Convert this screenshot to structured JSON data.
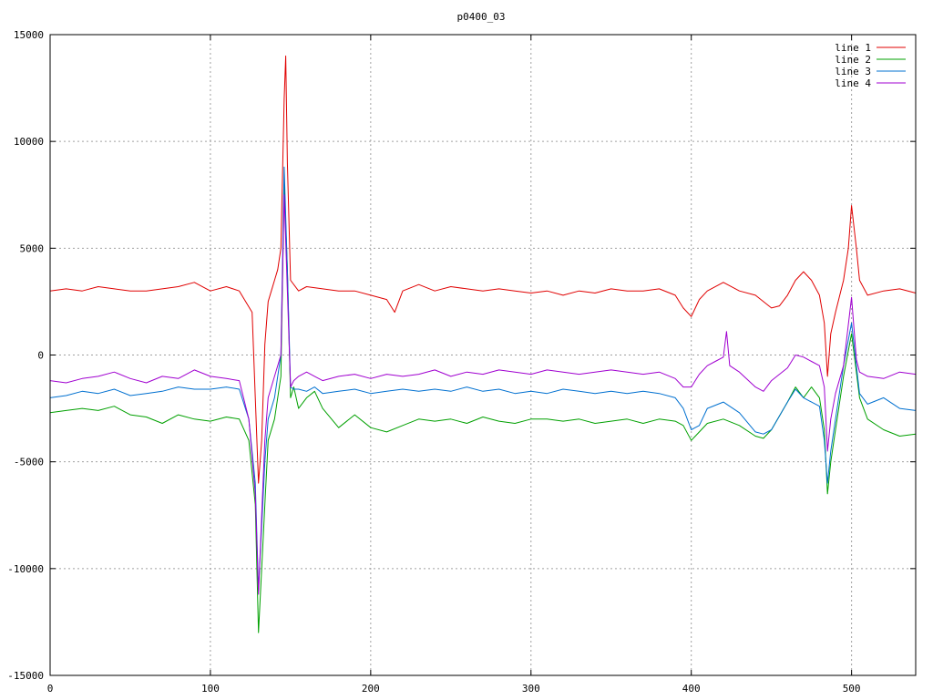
{
  "chart_data": {
    "type": "line",
    "title": "p0400_03",
    "xlabel": "",
    "ylabel": "",
    "xlim": [
      0,
      540
    ],
    "ylim": [
      -15000,
      15000
    ],
    "x_ticks": [
      0,
      100,
      200,
      300,
      400,
      500
    ],
    "x_tick_labels": [
      "0",
      "100",
      "200",
      "300",
      "400",
      "500"
    ],
    "y_ticks": [
      -15000,
      -10000,
      -5000,
      0,
      5000,
      10000,
      15000
    ],
    "y_tick_labels": [
      "-15000",
      "-10000",
      "-5000",
      "0",
      "5000",
      "10000",
      "15000"
    ],
    "grid": true,
    "legend_position": "top-right",
    "series": [
      {
        "name": "line 1",
        "color": "#e00000",
        "x": [
          0,
          10,
          20,
          30,
          40,
          50,
          60,
          70,
          80,
          90,
          100,
          110,
          118,
          122,
          126,
          128,
          130,
          132,
          134,
          136,
          138,
          140,
          142,
          144,
          146,
          147,
          148,
          150,
          155,
          160,
          170,
          180,
          190,
          200,
          210,
          215,
          220,
          230,
          240,
          250,
          260,
          270,
          280,
          290,
          300,
          310,
          320,
          330,
          340,
          350,
          360,
          370,
          380,
          390,
          395,
          400,
          405,
          410,
          420,
          430,
          440,
          450,
          455,
          460,
          465,
          470,
          475,
          480,
          483,
          485,
          487,
          490,
          495,
          498,
          500,
          503,
          505,
          510,
          520,
          530,
          540
        ],
        "values": [
          3000,
          3100,
          3000,
          3200,
          3100,
          3000,
          3000,
          3100,
          3200,
          3400,
          3000,
          3200,
          3000,
          2500,
          2000,
          -2000,
          -6000,
          -4000,
          500,
          2500,
          3000,
          3500,
          4000,
          5000,
          12000,
          14000,
          9000,
          3500,
          3000,
          3200,
          3100,
          3000,
          3000,
          2800,
          2600,
          2000,
          3000,
          3300,
          3000,
          3200,
          3100,
          3000,
          3100,
          3000,
          2900,
          3000,
          2800,
          3000,
          2900,
          3100,
          3000,
          3000,
          3100,
          2800,
          2200,
          1800,
          2600,
          3000,
          3400,
          3000,
          2800,
          2200,
          2300,
          2800,
          3500,
          3900,
          3500,
          2800,
          1500,
          -1000,
          1000,
          2000,
          3500,
          5000,
          7000,
          5000,
          3500,
          2800,
          3000,
          3100,
          2900
        ]
      },
      {
        "name": "line 2",
        "color": "#00a000",
        "x": [
          0,
          10,
          20,
          30,
          40,
          50,
          60,
          70,
          80,
          90,
          100,
          110,
          118,
          124,
          128,
          130,
          132,
          134,
          136,
          140,
          144,
          146,
          148,
          150,
          152,
          155,
          160,
          165,
          170,
          180,
          190,
          200,
          210,
          220,
          230,
          240,
          250,
          260,
          270,
          280,
          290,
          300,
          310,
          320,
          330,
          340,
          350,
          360,
          370,
          380,
          390,
          395,
          400,
          405,
          410,
          420,
          430,
          440,
          445,
          450,
          460,
          465,
          470,
          475,
          480,
          483,
          485,
          487,
          490,
          495,
          500,
          503,
          505,
          510,
          520,
          530,
          540
        ],
        "values": [
          -2700,
          -2600,
          -2500,
          -2600,
          -2400,
          -2800,
          -2900,
          -3200,
          -2800,
          -3000,
          -3100,
          -2900,
          -3000,
          -4000,
          -7000,
          -13000,
          -10000,
          -7000,
          -4000,
          -3000,
          -1000,
          8000,
          4000,
          -2000,
          -1500,
          -2500,
          -2000,
          -1700,
          -2500,
          -3400,
          -2800,
          -3400,
          -3600,
          -3300,
          -3000,
          -3100,
          -3000,
          -3200,
          -2900,
          -3100,
          -3200,
          -3000,
          -3000,
          -3100,
          -3000,
          -3200,
          -3100,
          -3000,
          -3200,
          -3000,
          -3100,
          -3300,
          -4000,
          -3600,
          -3200,
          -3000,
          -3300,
          -3800,
          -3900,
          -3500,
          -2200,
          -1500,
          -2000,
          -1500,
          -2000,
          -3500,
          -6500,
          -5000,
          -3500,
          -1000,
          1000,
          -800,
          -2000,
          -3000,
          -3500,
          -3800,
          -3700
        ]
      },
      {
        "name": "line 3",
        "color": "#0070d0",
        "x": [
          0,
          10,
          20,
          30,
          40,
          50,
          60,
          70,
          80,
          90,
          100,
          110,
          118,
          124,
          128,
          130,
          132,
          134,
          136,
          140,
          144,
          146,
          148,
          150,
          152,
          155,
          160,
          165,
          170,
          180,
          190,
          200,
          210,
          220,
          230,
          240,
          250,
          260,
          270,
          280,
          290,
          300,
          310,
          320,
          330,
          340,
          350,
          360,
          370,
          380,
          390,
          395,
          400,
          405,
          410,
          420,
          430,
          440,
          445,
          450,
          460,
          465,
          470,
          475,
          480,
          483,
          485,
          487,
          490,
          495,
          500,
          503,
          505,
          510,
          520,
          530,
          540
        ],
        "values": [
          -2000,
          -1900,
          -1700,
          -1800,
          -1600,
          -1900,
          -1800,
          -1700,
          -1500,
          -1600,
          -1600,
          -1500,
          -1600,
          -3000,
          -6000,
          -11000,
          -8000,
          -5000,
          -3000,
          -2000,
          0,
          8800,
          4000,
          -1500,
          -1600,
          -1600,
          -1700,
          -1500,
          -1800,
          -1700,
          -1600,
          -1800,
          -1700,
          -1600,
          -1700,
          -1600,
          -1700,
          -1500,
          -1700,
          -1600,
          -1800,
          -1700,
          -1800,
          -1600,
          -1700,
          -1800,
          -1700,
          -1800,
          -1700,
          -1800,
          -2000,
          -2500,
          -3500,
          -3300,
          -2500,
          -2200,
          -2700,
          -3600,
          -3700,
          -3500,
          -2200,
          -1600,
          -2000,
          -2200,
          -2400,
          -4000,
          -6000,
          -4500,
          -3000,
          -500,
          1500,
          -500,
          -1800,
          -2300,
          -2000,
          -2500,
          -2600
        ]
      },
      {
        "name": "line 4",
        "color": "#a000d0",
        "x": [
          0,
          10,
          20,
          30,
          40,
          50,
          60,
          70,
          80,
          90,
          100,
          110,
          118,
          124,
          128,
          130,
          132,
          134,
          136,
          140,
          144,
          146,
          148,
          150,
          152,
          155,
          160,
          165,
          170,
          180,
          190,
          200,
          210,
          220,
          230,
          240,
          250,
          260,
          270,
          280,
          290,
          300,
          310,
          320,
          330,
          340,
          350,
          360,
          370,
          380,
          390,
          395,
          400,
          405,
          410,
          415,
          420,
          422,
          424,
          430,
          440,
          445,
          450,
          460,
          465,
          470,
          475,
          480,
          483,
          485,
          487,
          490,
          495,
          500,
          503,
          505,
          510,
          520,
          530,
          540
        ],
        "values": [
          -1200,
          -1300,
          -1100,
          -1000,
          -800,
          -1100,
          -1300,
          -1000,
          -1100,
          -700,
          -1000,
          -1100,
          -1200,
          -3000,
          -6500,
          -11200,
          -7500,
          -4000,
          -2000,
          -1000,
          0,
          7500,
          3000,
          -1500,
          -1200,
          -1000,
          -800,
          -1000,
          -1200,
          -1000,
          -900,
          -1100,
          -900,
          -1000,
          -900,
          -700,
          -1000,
          -800,
          -900,
          -700,
          -800,
          -900,
          -700,
          -800,
          -900,
          -800,
          -700,
          -800,
          -900,
          -800,
          -1100,
          -1500,
          -1500,
          -900,
          -500,
          -300,
          -100,
          1100,
          -500,
          -800,
          -1500,
          -1700,
          -1200,
          -600,
          0,
          -100,
          -300,
          -500,
          -1500,
          -4500,
          -3000,
          -1800,
          -500,
          2700,
          -200,
          -800,
          -1000,
          -1100,
          -800,
          -900
        ]
      }
    ]
  }
}
